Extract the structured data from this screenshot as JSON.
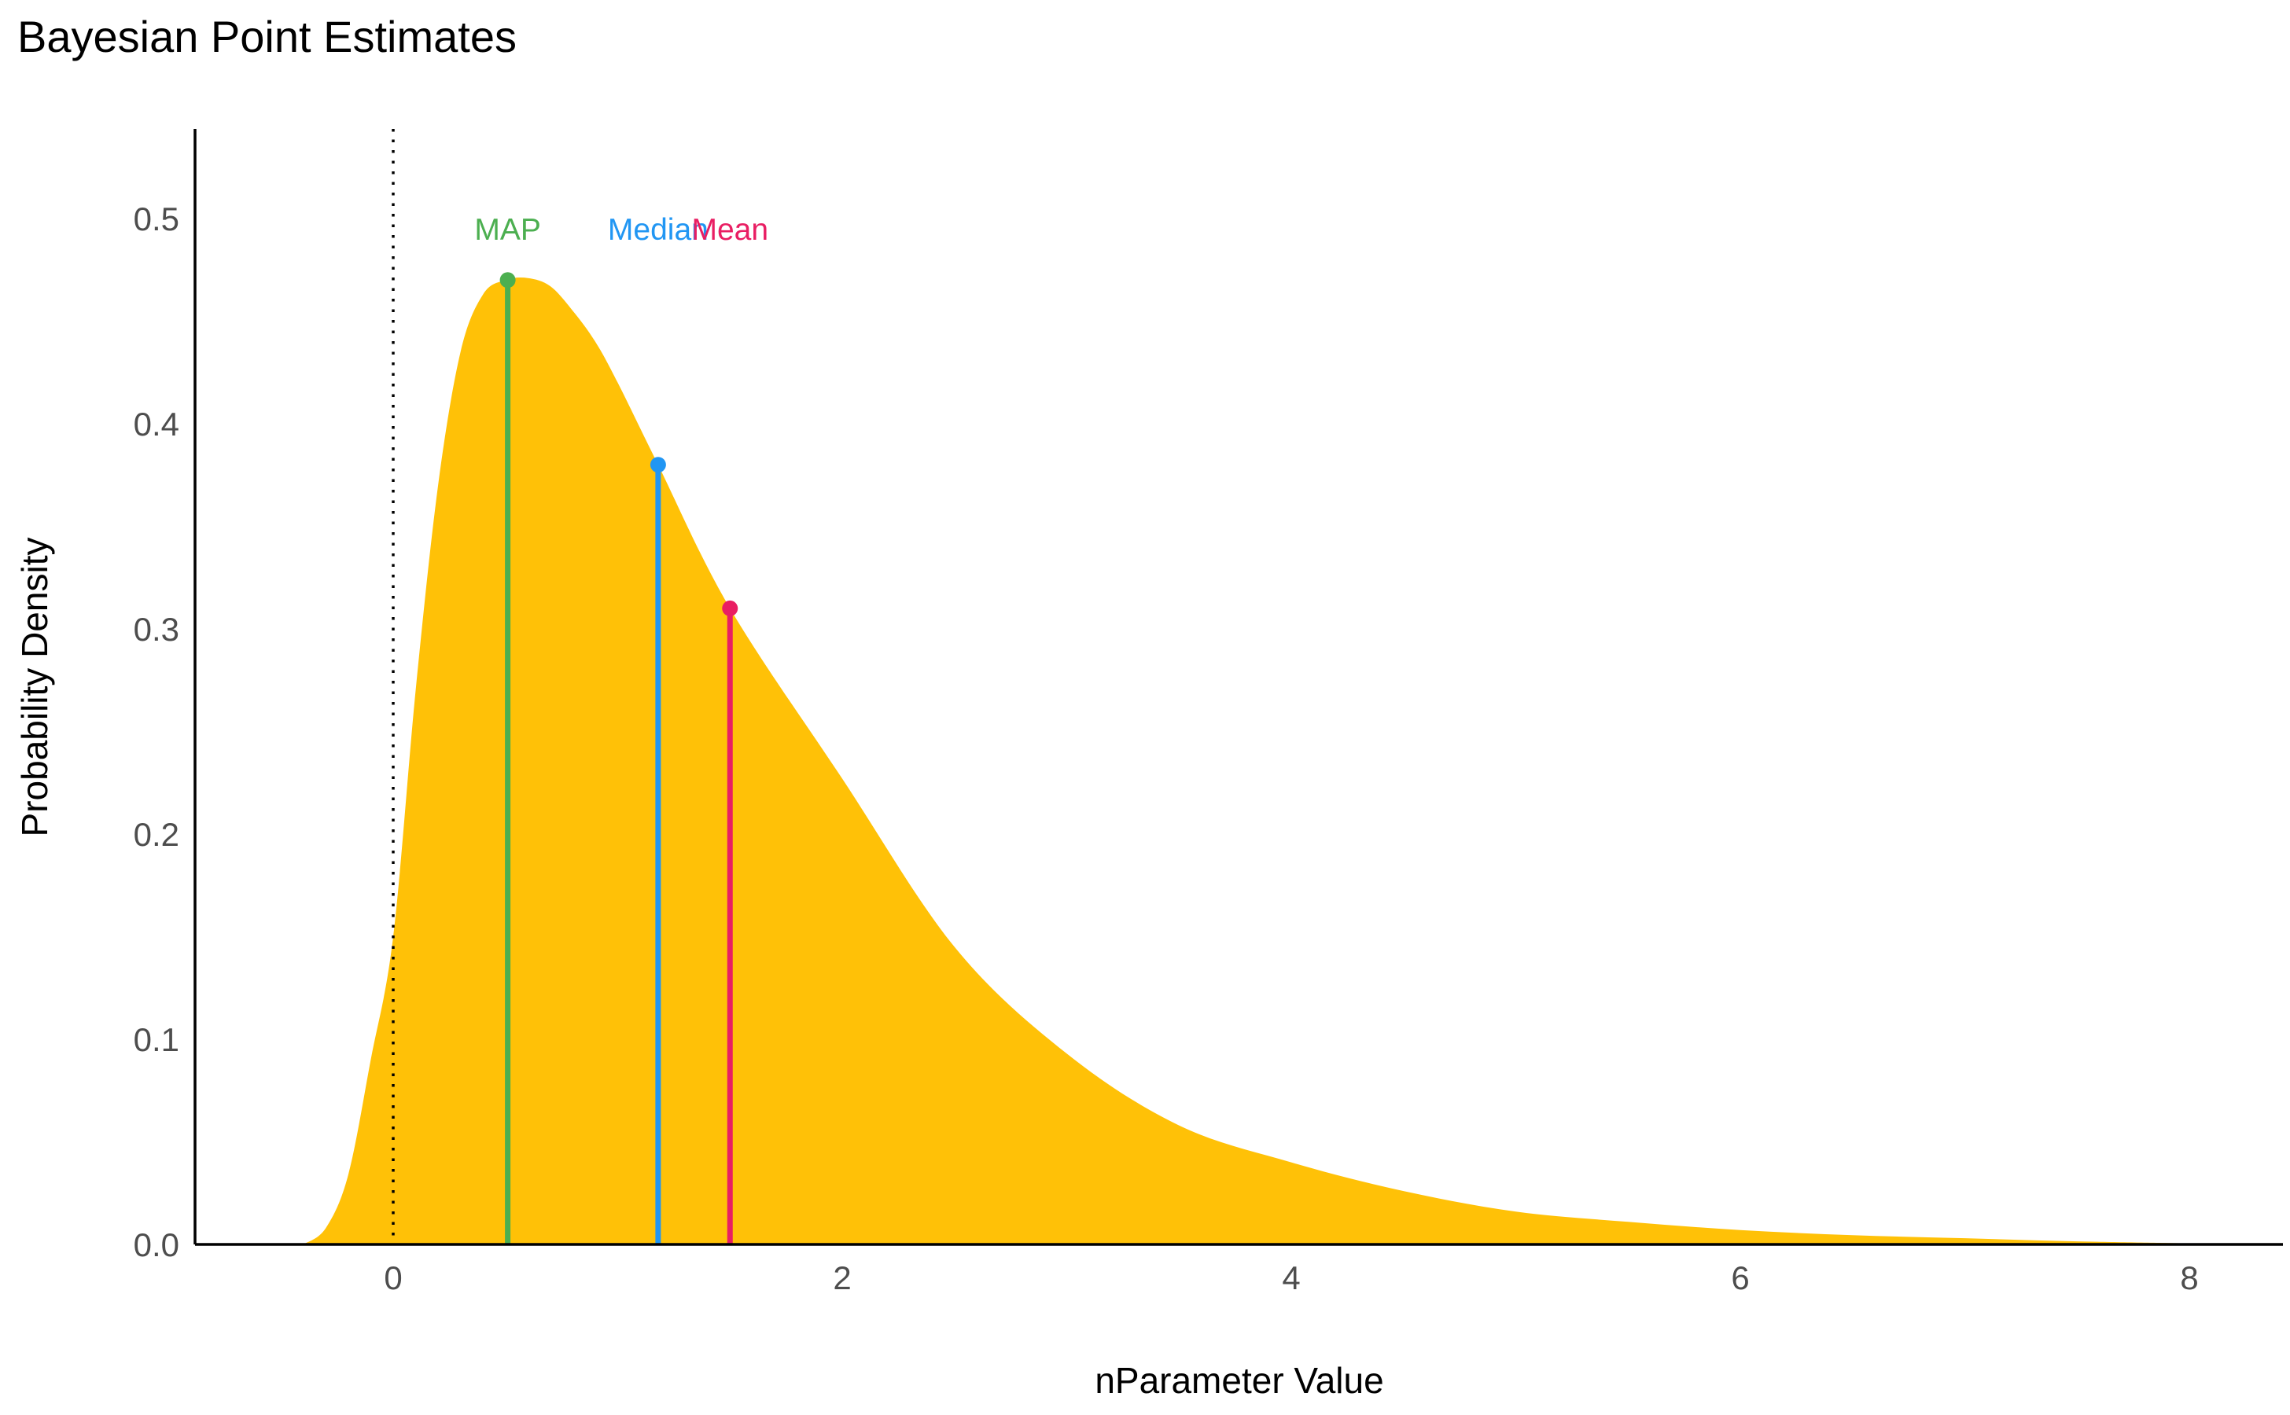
{
  "chart_data": {
    "type": "area",
    "title": "Bayesian Point Estimates",
    "xlabel": "nParameter Value",
    "ylabel": "Probability Density",
    "xlim": [
      -0.875,
      8.45
    ],
    "ylim": [
      0,
      0.54
    ],
    "xticks": [
      0,
      2,
      4,
      6,
      8
    ],
    "xtick_labels": [
      "0",
      "2",
      "4",
      "6",
      "8"
    ],
    "yticks": [
      0,
      0.1,
      0.2,
      0.3,
      0.4,
      0.5
    ],
    "ytick_labels": [
      "0.0",
      "0.1",
      "0.2",
      "0.3",
      "0.4",
      "0.5"
    ],
    "grid": false,
    "fill_color": "#FFC107",
    "reference_line": {
      "x": 0,
      "style": "dotted"
    },
    "density": {
      "x": [
        -0.4,
        -0.3,
        -0.2,
        -0.1,
        0,
        0.1,
        0.2,
        0.3,
        0.4,
        0.5,
        0.6,
        0.7,
        0.8,
        0.9,
        1.0,
        1.18,
        1.5,
        2.0,
        2.5,
        3.0,
        3.5,
        4.0,
        4.5,
        5.0,
        5.5,
        6.0,
        6.5,
        7.0,
        7.5,
        8.0
      ],
      "y": [
        0,
        0.008,
        0.034,
        0.09,
        0.15,
        0.27,
        0.37,
        0.435,
        0.463,
        0.47,
        0.471,
        0.467,
        0.455,
        0.44,
        0.42,
        0.38,
        0.31,
        0.227,
        0.145,
        0.093,
        0.058,
        0.04,
        0.026,
        0.016,
        0.011,
        0.007,
        0.0045,
        0.003,
        0.0015,
        0.0005
      ]
    },
    "estimates": [
      {
        "label": "MAP",
        "x": 0.51,
        "y": 0.47,
        "color": "#4CAF50"
      },
      {
        "label": "Median",
        "x": 1.18,
        "y": 0.38,
        "color": "#2196F3"
      },
      {
        "label": "Mean",
        "x": 1.5,
        "y": 0.31,
        "color": "#E91E63"
      }
    ],
    "label_y": 0.495
  }
}
